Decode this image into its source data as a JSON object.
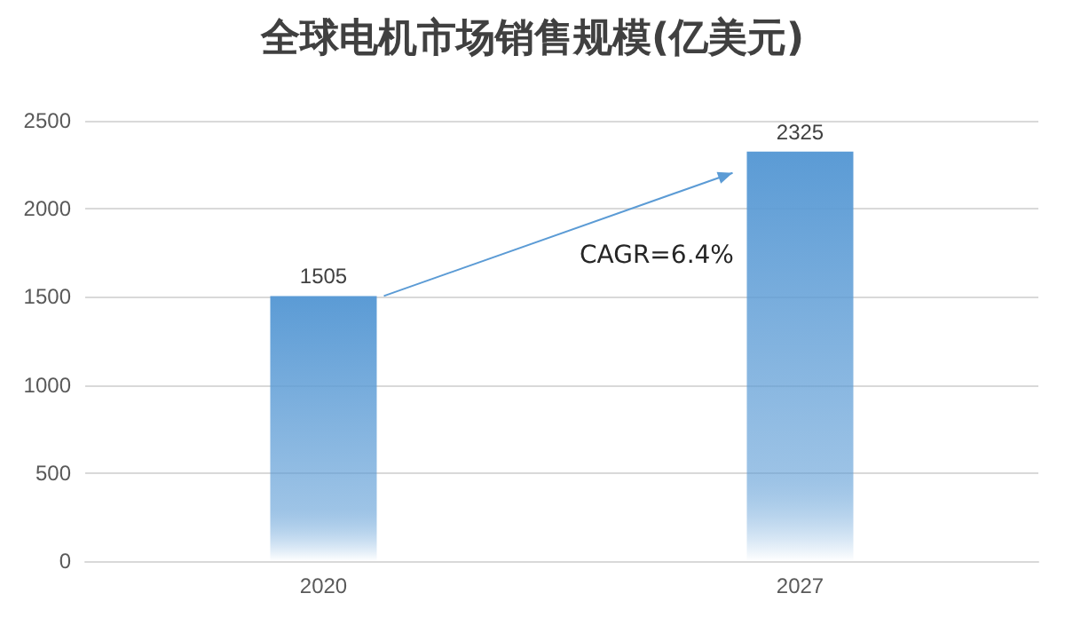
{
  "chart_data": {
    "type": "bar",
    "title": "全球电机市场销售规模(亿美元)",
    "categories": [
      "2020",
      "2027"
    ],
    "values": [
      1505,
      2325
    ],
    "color": "#5b9bd5",
    "ylim": [
      0,
      2500
    ],
    "yticks": [
      0,
      500,
      1000,
      1500,
      2000,
      2500
    ],
    "grid": "y",
    "data_labels": true,
    "annotations": [
      "CAGR=6.4%"
    ]
  }
}
